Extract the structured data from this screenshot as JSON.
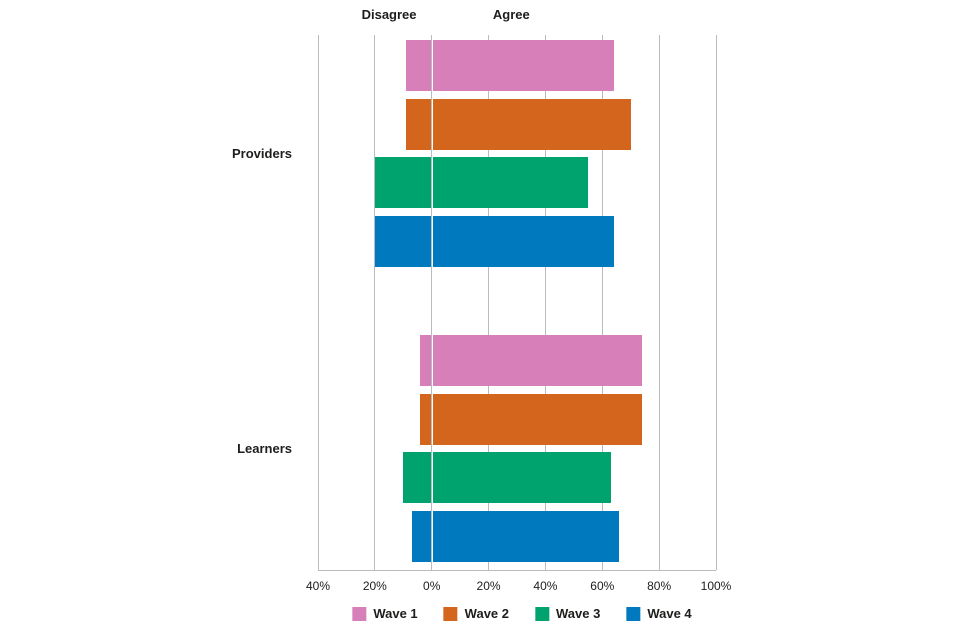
{
  "chart_data": {
    "type": "bar",
    "orientation": "horizontal-diverging",
    "title": "",
    "header_labels": {
      "disagree": "Disagree",
      "agree": "Agree"
    },
    "header_anchor_values": {
      "disagree": -15,
      "agree": 28
    },
    "xlim": [
      -40,
      100
    ],
    "x_ticks": [
      -40,
      -20,
      0,
      20,
      40,
      60,
      80,
      100
    ],
    "x_tick_labels": [
      "40%",
      "20%",
      "0%",
      "20%",
      "40%",
      "60%",
      "80%",
      "100%"
    ],
    "grid": true,
    "legend_position": "bottom",
    "groups": [
      {
        "label": "Providers",
        "bars": [
          {
            "series": "Wave 1",
            "disagree": 9,
            "agree": 64
          },
          {
            "series": "Wave 2",
            "disagree": 9,
            "agree": 70
          },
          {
            "series": "Wave 3",
            "disagree": 20,
            "agree": 55
          },
          {
            "series": "Wave 4",
            "disagree": 20,
            "agree": 64
          }
        ]
      },
      {
        "label": "Learners",
        "bars": [
          {
            "series": "Wave 1",
            "disagree": 4,
            "agree": 74
          },
          {
            "series": "Wave 2",
            "disagree": 4,
            "agree": 74
          },
          {
            "series": "Wave 3",
            "disagree": 10,
            "agree": 63
          },
          {
            "series": "Wave 4",
            "disagree": 7,
            "agree": 66
          }
        ]
      }
    ],
    "legend": [
      {
        "label": "Wave 1",
        "color": "#d67fb8"
      },
      {
        "label": "Wave 2",
        "color": "#d4651d"
      },
      {
        "label": "Wave 3",
        "color": "#00a36d"
      },
      {
        "label": "Wave 4",
        "color": "#0079bf"
      }
    ]
  },
  "colors": {
    "grid": "#b9bcbe",
    "axis": "#b9bcbe",
    "text": "#1d1d1b",
    "background": "#ffffff",
    "zero_gap": "#ffffff"
  }
}
